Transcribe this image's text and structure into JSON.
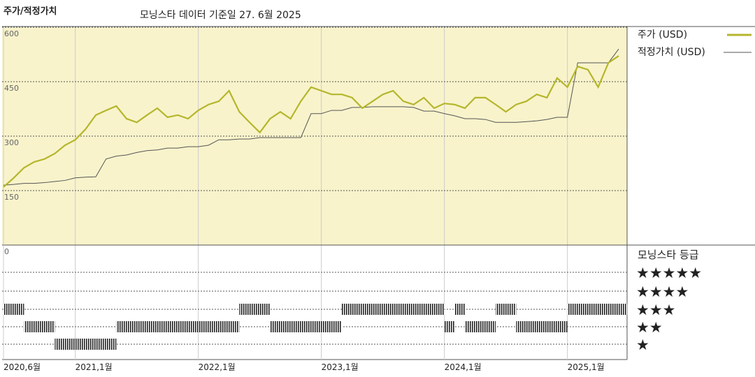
{
  "chart_data": {
    "type": "line",
    "title": "주가/적정가치",
    "subtitle": "모닝스타 데이터 기준일 27. 6월 2025",
    "x": [
      "2020-06",
      "2020-07",
      "2020-08",
      "2020-09",
      "2020-10",
      "2020-11",
      "2020-12",
      "2021-01",
      "2021-02",
      "2021-03",
      "2021-04",
      "2021-05",
      "2021-06",
      "2021-07",
      "2021-08",
      "2021-09",
      "2021-10",
      "2021-11",
      "2021-12",
      "2022-01",
      "2022-02",
      "2022-03",
      "2022-04",
      "2022-05",
      "2022-06",
      "2022-07",
      "2022-08",
      "2022-09",
      "2022-10",
      "2022-11",
      "2022-12",
      "2023-01",
      "2023-02",
      "2023-03",
      "2023-04",
      "2023-05",
      "2023-06",
      "2023-07",
      "2023-08",
      "2023-09",
      "2023-10",
      "2023-11",
      "2023-12",
      "2024-01",
      "2024-02",
      "2024-03",
      "2024-04",
      "2024-05",
      "2024-06",
      "2024-07",
      "2024-08",
      "2024-09",
      "2024-10",
      "2024-11",
      "2024-12",
      "2025-01",
      "2025-02",
      "2025-03",
      "2025-04",
      "2025-05",
      "2025-06"
    ],
    "series": [
      {
        "name": "주가 (USD)",
        "color": "#b4b62c",
        "width": 2.2,
        "values": [
          160,
          185,
          213,
          229,
          237,
          252,
          275,
          290,
          319,
          358,
          371,
          383,
          348,
          338,
          358,
          377,
          352,
          358,
          348,
          371,
          387,
          396,
          425,
          367,
          338,
          310,
          348,
          367,
          348,
          396,
          435,
          425,
          415,
          415,
          406,
          377,
          396,
          415,
          425,
          396,
          387,
          406,
          377,
          390,
          387,
          377,
          406,
          406,
          387,
          367,
          387,
          396,
          415,
          406,
          460,
          435,
          492,
          483,
          435,
          502,
          521
        ]
      },
      {
        "name": "적정가치 (USD)",
        "color": "#555555",
        "width": 1,
        "values": [
          165,
          167,
          170,
          170,
          172,
          175,
          178,
          185,
          187,
          188,
          237,
          245,
          248,
          255,
          260,
          262,
          267,
          267,
          271,
          271,
          275,
          290,
          290,
          292,
          292,
          296,
          296,
          296,
          296,
          296,
          362,
          362,
          371,
          371,
          379,
          379,
          381,
          381,
          381,
          381,
          379,
          369,
          369,
          362,
          356,
          348,
          348,
          346,
          338,
          338,
          338,
          340,
          342,
          346,
          352,
          352,
          502,
          502,
          502,
          502,
          540
        ]
      }
    ],
    "xlim": [
      "2020-06",
      "2025-06"
    ],
    "xticks": [
      {
        "value": "2020-06",
        "label": "2020,6월"
      },
      {
        "value": "2021-01",
        "label": "2021,1월"
      },
      {
        "value": "2022-01",
        "label": "2022,1월"
      },
      {
        "value": "2023-01",
        "label": "2023,1월"
      },
      {
        "value": "2024-01",
        "label": "2024,1월"
      },
      {
        "value": "2025-01",
        "label": "2025,1월"
      }
    ],
    "ylim": [
      0,
      600
    ],
    "yticks": [
      0,
      150,
      300,
      450,
      600
    ],
    "grid": true,
    "background": "#f8f3cb",
    "rating_title": "모닝스타 등급",
    "rating_levels": [
      "★★★★★",
      "★★★★",
      "★★★",
      "★★",
      "★"
    ],
    "ratings": [
      {
        "start": "2020-06",
        "end": "2020-08",
        "stars": 3
      },
      {
        "start": "2020-08",
        "end": "2020-11",
        "stars": 2
      },
      {
        "start": "2020-11",
        "end": "2021-05",
        "stars": 1
      },
      {
        "start": "2021-05",
        "end": "2022-05",
        "stars": 2
      },
      {
        "start": "2022-05",
        "end": "2022-08",
        "stars": 3
      },
      {
        "start": "2022-08",
        "end": "2023-03",
        "stars": 2
      },
      {
        "start": "2023-03",
        "end": "2024-01",
        "stars": 3
      },
      {
        "start": "2024-01",
        "end": "2024-02",
        "stars": 2
      },
      {
        "start": "2024-02",
        "end": "2024-03",
        "stars": 3
      },
      {
        "start": "2024-03",
        "end": "2024-06",
        "stars": 2
      },
      {
        "start": "2024-06",
        "end": "2024-08",
        "stars": 3
      },
      {
        "start": "2024-08",
        "end": "2025-01",
        "stars": 2
      },
      {
        "start": "2025-01",
        "end": "2025-06",
        "stars": 3
      }
    ]
  }
}
